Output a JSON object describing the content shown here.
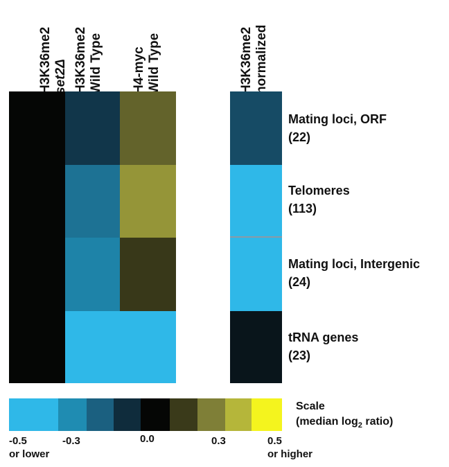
{
  "chart_data": {
    "type": "heatmap",
    "columns": [
      {
        "line1": "H3K36me2",
        "line2": "set2Δ"
      },
      {
        "line1": "H3K36me2",
        "line2": "Wild Type"
      },
      {
        "line1": "H4-myc",
        "line2": "Wild Type"
      },
      {
        "line1": "H3K36me2",
        "line2": "normalized"
      }
    ],
    "rows": [
      {
        "label": "Mating loci, ORF",
        "count": "(22)"
      },
      {
        "label": "Telomeres",
        "count": "(113)"
      },
      {
        "label": "Mating loci, Intergenic",
        "count": "(24)"
      },
      {
        "label": "tRNA genes",
        "count": "(23)"
      }
    ],
    "values": [
      [
        0.0,
        -0.15,
        0.2,
        -0.2
      ],
      [
        0.0,
        -0.3,
        0.3,
        -0.5
      ],
      [
        0.0,
        -0.35,
        0.12,
        -0.5
      ],
      [
        0.0,
        -0.5,
        -0.5,
        -0.05
      ]
    ],
    "color_scale": {
      "min": -0.5,
      "max": 0.5,
      "stops": [
        "#2fb8e8",
        "#1f8cb2",
        "#1b6080",
        "#0f2c3c",
        "#050605",
        "#3a3a1a",
        "#7f7f37",
        "#b5b63a",
        "#f4f41e"
      ]
    },
    "legend": {
      "title_line1": "Scale",
      "title_line2_prefix": "(median log",
      "title_line2_sub": "2",
      "title_line2_suffix": " ratio)",
      "ticks": [
        {
          "value": "-0.5",
          "note": "or lower"
        },
        {
          "value": "-0.3",
          "note": ""
        },
        {
          "value": "0.0",
          "note": ""
        },
        {
          "value": "0.3",
          "note": ""
        },
        {
          "value": "0.5",
          "note": "or higher"
        }
      ]
    }
  }
}
